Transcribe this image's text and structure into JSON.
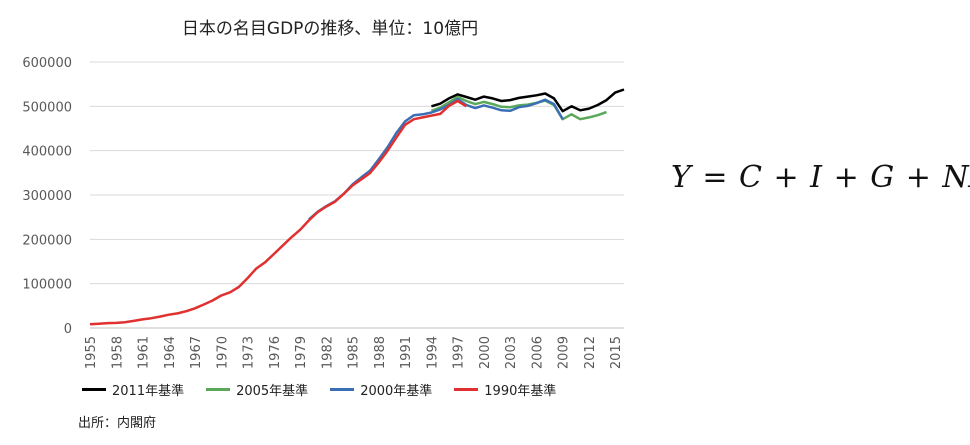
{
  "chart_data": {
    "type": "line",
    "title": "日本の名目GDPの推移、単位：10億円",
    "ylim": [
      0,
      600000
    ],
    "yticks": [
      "0",
      "100000",
      "200000",
      "300000",
      "400000",
      "500000",
      "600000"
    ],
    "xlim": [
      1955,
      2016
    ],
    "xticks": [
      "1955",
      "1958",
      "1961",
      "1964",
      "1967",
      "1970",
      "1973",
      "1976",
      "1979",
      "1982",
      "1985",
      "1988",
      "1991",
      "1994",
      "1997",
      "2000",
      "2003",
      "2006",
      "2009",
      "2012",
      "2015"
    ],
    "grid": "horizontal",
    "legend_position": "bottom",
    "series": [
      {
        "name": "2011年基準",
        "color": "#000000",
        "x": [
          1994,
          1995,
          1996,
          1997,
          1998,
          1999,
          2000,
          2001,
          2002,
          2003,
          2004,
          2005,
          2006,
          2007,
          2008,
          2009,
          2010,
          2011,
          2012,
          2013,
          2014,
          2015,
          2016
        ],
        "y": [
          500000,
          506000,
          518000,
          527000,
          521000,
          515000,
          522000,
          518000,
          512000,
          514000,
          519000,
          522000,
          525000,
          529000,
          518000,
          489000,
          500000,
          491000,
          495000,
          503000,
          514000,
          531000,
          538000
        ]
      },
      {
        "name": "2005年基準",
        "color": "#5aa85a",
        "x": [
          1994,
          1995,
          1996,
          1997,
          1998,
          1999,
          2000,
          2001,
          2002,
          2003,
          2004,
          2005,
          2006,
          2007,
          2008,
          2009,
          2010,
          2011,
          2012,
          2013,
          2014
        ],
        "y": [
          490000,
          497000,
          509000,
          521000,
          512000,
          505000,
          510000,
          505000,
          499000,
          498000,
          502000,
          504000,
          508000,
          513000,
          503000,
          471000,
          482000,
          471000,
          475000,
          480000,
          487000
        ]
      },
      {
        "name": "2000年基準",
        "color": "#3a6fb5",
        "x": [
          1980,
          1981,
          1982,
          1983,
          1984,
          1985,
          1986,
          1987,
          1988,
          1989,
          1990,
          1991,
          1992,
          1993,
          1994,
          1995,
          1996,
          1997,
          1998,
          1999,
          2000,
          2001,
          2002,
          2003,
          2004,
          2005,
          2006,
          2007,
          2008,
          2009
        ],
        "y": [
          245000,
          262000,
          275000,
          286000,
          303000,
          324000,
          340000,
          355000,
          381000,
          408000,
          440000,
          466000,
          480000,
          482000,
          486000,
          493000,
          503000,
          516000,
          503000,
          496000,
          502000,
          497000,
          491000,
          490000,
          498000,
          501000,
          507000,
          515000,
          505000,
          471000
        ]
      },
      {
        "name": "1990年基準",
        "color": "#e03030",
        "x": [
          1955,
          1956,
          1957,
          1958,
          1959,
          1960,
          1961,
          1962,
          1963,
          1964,
          1965,
          1966,
          1967,
          1968,
          1969,
          1970,
          1971,
          1972,
          1973,
          1974,
          1975,
          1976,
          1977,
          1978,
          1979,
          1980,
          1981,
          1982,
          1983,
          1984,
          1985,
          1986,
          1987,
          1988,
          1989,
          1990,
          1991,
          1992,
          1993,
          1994,
          1995,
          1996,
          1997,
          1998
        ],
        "y": [
          8600,
          9600,
          11100,
          11500,
          13000,
          16000,
          19500,
          22000,
          25800,
          30000,
          33000,
          38000,
          44500,
          52900,
          62100,
          73300,
          80600,
          92400,
          112500,
          134200,
          148300,
          166600,
          185600,
          204400,
          221500,
          242800,
          261100,
          274100,
          285100,
          302900,
          321600,
          335400,
          349600,
          373700,
          399900,
          430000,
          458300,
          471000,
          475000,
          479000,
          483000,
          501000,
          512000,
          500000
        ]
      }
    ]
  },
  "equation": "Y = C + I + G + NX",
  "source": "出所：内閣府"
}
